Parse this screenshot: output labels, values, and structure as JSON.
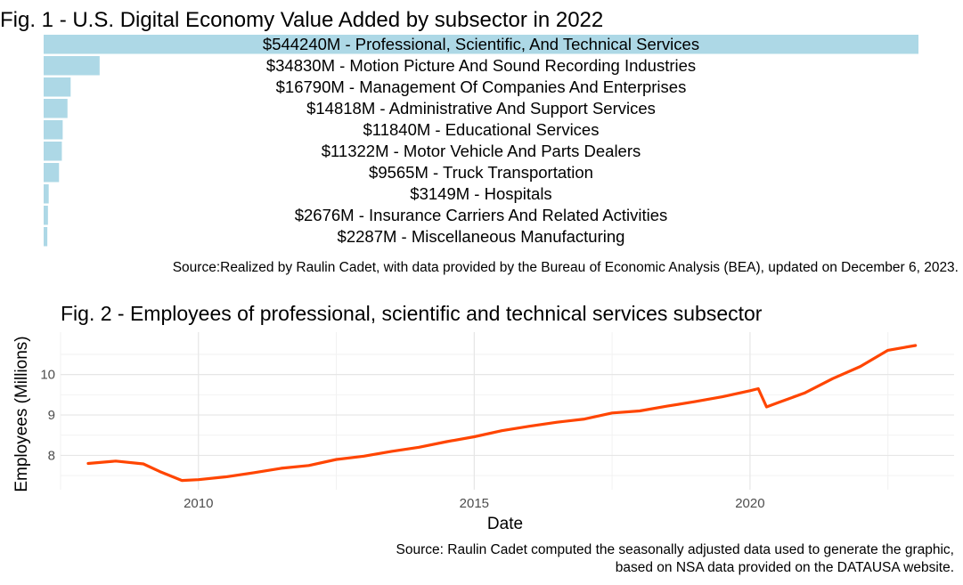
{
  "chart_data": [
    {
      "type": "bar",
      "orientation": "horizontal",
      "title": "Fig. 1 - U.S. Digital Economy Value Added by subsector in 2022",
      "caption": "Source:Realized by Raulin Cadet, with data provided by the Bureau of Economic Analysis (BEA), updated on December 6, 2023.",
      "bar_color": "#add8e6",
      "labels": [
        "$544240M - Professional, Scientific, And Technical Services",
        "$34830M - Motion Picture And Sound Recording Industries",
        "$16790M - Management Of Companies And Enterprises",
        "$14818M - Administrative And Support Services",
        "$11840M - Educational Services",
        "$11322M - Motor Vehicle And Parts Dealers",
        "$9565M - Truck Transportation",
        "$3149M - Hospitals",
        "$2676M - Insurance Carriers And Related Activities",
        "$2287M - Miscellaneous Manufacturing"
      ],
      "values": [
        544240,
        34830,
        16790,
        14818,
        11840,
        11322,
        9565,
        3149,
        2676,
        2287
      ],
      "grid": false,
      "axes": false
    },
    {
      "type": "line",
      "title": "Fig. 2 - Employees of professional, scientific and technical services subsector",
      "xlabel": "Date",
      "ylabel": "Employees (Millions)",
      "caption_lines": [
        "Source: Raulin Cadet computed the seasonally adjusted data used to generate the graphic,",
        "based on NSA data provided on the DATAUSA website."
      ],
      "line_color": "#ff4500",
      "xlim": [
        2007.5,
        2023.7
      ],
      "ylim": [
        7.15,
        11.05
      ],
      "x_ticks": [
        2010,
        2015,
        2020
      ],
      "y_ticks": [
        8,
        9,
        10
      ],
      "grid": true,
      "x": [
        2008.0,
        2008.5,
        2009.0,
        2009.3,
        2009.7,
        2010.0,
        2010.5,
        2011.0,
        2011.5,
        2012.0,
        2012.5,
        2013.0,
        2013.5,
        2014.0,
        2014.5,
        2015.0,
        2015.5,
        2016.0,
        2016.5,
        2017.0,
        2017.5,
        2018.0,
        2018.5,
        2019.0,
        2019.5,
        2020.0,
        2020.15,
        2020.3,
        2020.5,
        2021.0,
        2021.5,
        2022.0,
        2022.5,
        2023.0
      ],
      "y": [
        7.8,
        7.86,
        7.79,
        7.6,
        7.38,
        7.4,
        7.47,
        7.57,
        7.68,
        7.75,
        7.9,
        7.98,
        8.1,
        8.2,
        8.34,
        8.46,
        8.61,
        8.72,
        8.82,
        8.9,
        9.05,
        9.1,
        9.22,
        9.33,
        9.45,
        9.6,
        9.65,
        9.2,
        9.3,
        9.55,
        9.9,
        10.2,
        10.6,
        10.72
      ]
    }
  ]
}
